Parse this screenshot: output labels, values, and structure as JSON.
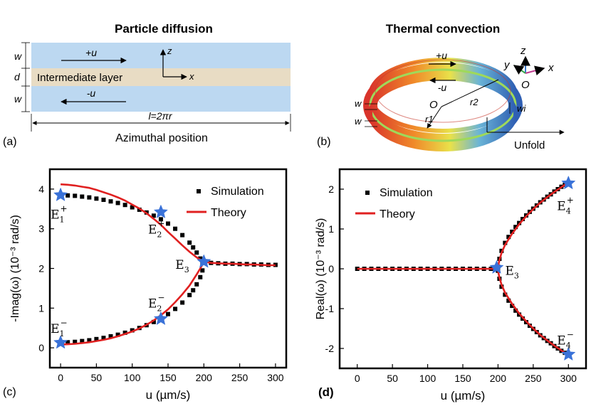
{
  "panel_a": {
    "title": "Particle diffusion",
    "label": "(a)",
    "top_flow": "+u",
    "bottom_flow": "-u",
    "middle_layer": "Intermediate layer",
    "axis_z": "z",
    "axis_x": "x",
    "dim_w_top": "w",
    "dim_d": "d",
    "dim_w_bottom": "w",
    "length": "l=2πr",
    "xlabel": "Azimuthal position"
  },
  "panel_b": {
    "title": "Thermal convection",
    "label": "(b)",
    "flow_plus": "+u",
    "flow_minus": "-u",
    "center": "O",
    "r1": "r1",
    "r2": "r2",
    "w_top": "w",
    "w_bottom": "w",
    "wi": "wi",
    "unfold": "Unfold",
    "axis_z": "z",
    "axis_y": "y",
    "axis_x": "x",
    "origin": "O",
    "colors": {
      "ring_hot": "#d9342b",
      "ring_mid": "#e9e14a",
      "ring_cold": "#2f5fb3",
      "ring_green": "#9fd95a"
    }
  },
  "chart_data": [
    {
      "panel": "(c)",
      "type": "line",
      "xlabel": "u (µm/s)",
      "ylabel": "-Imag(ω) (10⁻³ rad/s)",
      "xlim": [
        -15,
        315
      ],
      "ylim": [
        -0.5,
        4.5
      ],
      "xticks": [
        0,
        50,
        100,
        150,
        200,
        250,
        300
      ],
      "yticks": [
        0,
        1,
        2,
        3,
        4
      ],
      "legend": [
        "Simulation",
        "Theory"
      ],
      "legend_position": "top-right",
      "series": [
        {
          "name": "Simulation upper",
          "x": [
            0,
            10,
            20,
            30,
            40,
            50,
            60,
            70,
            80,
            90,
            100,
            110,
            120,
            130,
            140,
            150,
            160,
            170,
            180,
            185,
            190,
            195,
            198,
            200,
            210,
            220,
            230,
            240,
            250,
            260,
            270,
            280,
            290,
            300
          ],
          "y": [
            3.85,
            3.84,
            3.83,
            3.81,
            3.79,
            3.76,
            3.73,
            3.69,
            3.65,
            3.6,
            3.54,
            3.48,
            3.41,
            3.33,
            3.24,
            3.13,
            3.0,
            2.84,
            2.65,
            2.53,
            2.4,
            2.25,
            2.15,
            2.15,
            2.14,
            2.13,
            2.12,
            2.12,
            2.11,
            2.11,
            2.1,
            2.1,
            2.09,
            2.09
          ]
        },
        {
          "name": "Simulation lower",
          "x": [
            0,
            10,
            20,
            30,
            40,
            50,
            60,
            70,
            80,
            90,
            100,
            110,
            120,
            130,
            140,
            150,
            160,
            170,
            180,
            185,
            190,
            195,
            198
          ],
          "y": [
            0.13,
            0.14,
            0.15,
            0.17,
            0.19,
            0.22,
            0.25,
            0.29,
            0.33,
            0.38,
            0.44,
            0.5,
            0.57,
            0.65,
            0.74,
            0.85,
            0.98,
            1.14,
            1.33,
            1.45,
            1.6,
            1.78,
            1.95
          ]
        },
        {
          "name": "Theory upper",
          "x": [
            0,
            10,
            20,
            30,
            40,
            50,
            60,
            70,
            80,
            90,
            100,
            110,
            120,
            130,
            140,
            150,
            160,
            170,
            180,
            190,
            195,
            200,
            210,
            220,
            230,
            240,
            250,
            260,
            270,
            280,
            290,
            300
          ],
          "y": [
            4.12,
            4.11,
            4.09,
            4.06,
            4.03,
            3.98,
            3.92,
            3.86,
            3.79,
            3.71,
            3.61,
            3.51,
            3.39,
            3.25,
            3.1,
            2.92,
            2.75,
            2.58,
            2.42,
            2.28,
            2.22,
            2.17,
            2.14,
            2.13,
            2.12,
            2.12,
            2.11,
            2.1,
            2.1,
            2.09,
            2.08,
            2.08
          ]
        },
        {
          "name": "Theory lower",
          "x": [
            0,
            10,
            20,
            30,
            40,
            50,
            60,
            70,
            80,
            90,
            100,
            110,
            120,
            130,
            140,
            150,
            160,
            170,
            180,
            190,
            195,
            200
          ],
          "y": [
            0.08,
            0.09,
            0.1,
            0.12,
            0.14,
            0.17,
            0.2,
            0.24,
            0.29,
            0.35,
            0.41,
            0.49,
            0.58,
            0.69,
            0.82,
            0.97,
            1.15,
            1.35,
            1.57,
            1.85,
            2.0,
            2.17
          ]
        }
      ],
      "points": [
        {
          "label": "E1+",
          "sub": "1",
          "sup": "+",
          "x": 0,
          "y": 3.85
        },
        {
          "label": "E2+",
          "sub": "2",
          "sup": "+",
          "x": 140,
          "y": 3.42
        },
        {
          "label": "E3",
          "sub": "3",
          "sup": "",
          "x": 200,
          "y": 2.17
        },
        {
          "label": "E2−",
          "sub": "2",
          "sup": "−",
          "x": 140,
          "y": 0.73
        },
        {
          "label": "E1−",
          "sub": "1",
          "sup": "−",
          "x": 0,
          "y": 0.13
        }
      ]
    },
    {
      "panel": "(d)",
      "type": "line",
      "xlabel": "u (µm/s)",
      "ylabel": "Real(ω) (10⁻³ rad/s)",
      "xlim": [
        -25,
        325
      ],
      "ylim": [
        -2.5,
        2.5
      ],
      "xticks": [
        0,
        50,
        100,
        150,
        200,
        250,
        300
      ],
      "yticks": [
        -2,
        -1,
        0,
        1,
        2
      ],
      "legend": [
        "Simulation",
        "Theory"
      ],
      "legend_position": "top-left",
      "series": [
        {
          "name": "Simulation upper",
          "x": [
            200,
            202,
            205,
            210,
            215,
            220,
            225,
            230,
            235,
            240,
            245,
            250,
            255,
            260,
            265,
            270,
            275,
            280,
            285,
            290,
            295,
            300
          ],
          "y": [
            0.05,
            0.25,
            0.45,
            0.65,
            0.8,
            0.93,
            1.05,
            1.15,
            1.25,
            1.34,
            1.43,
            1.51,
            1.59,
            1.67,
            1.74,
            1.81,
            1.87,
            1.94,
            2.0,
            2.06,
            2.11,
            2.16
          ]
        },
        {
          "name": "Simulation lower",
          "x": [
            200,
            202,
            205,
            210,
            215,
            220,
            225,
            230,
            235,
            240,
            245,
            250,
            255,
            260,
            265,
            270,
            275,
            280,
            285,
            290,
            295,
            300
          ],
          "y": [
            -0.05,
            -0.25,
            -0.45,
            -0.65,
            -0.8,
            -0.93,
            -1.05,
            -1.15,
            -1.25,
            -1.34,
            -1.43,
            -1.51,
            -1.59,
            -1.67,
            -1.74,
            -1.81,
            -1.87,
            -1.94,
            -2.0,
            -2.06,
            -2.11,
            -2.16
          ]
        },
        {
          "name": "Theory upper",
          "x": [
            0,
            50,
            100,
            150,
            195,
            198,
            200,
            202,
            205,
            210,
            220,
            230,
            240,
            250,
            260,
            270,
            280,
            290,
            300
          ],
          "y": [
            0,
            0,
            0,
            0,
            0,
            0,
            0.05,
            0.22,
            0.4,
            0.6,
            0.88,
            1.12,
            1.32,
            1.5,
            1.66,
            1.8,
            1.93,
            2.05,
            2.17
          ]
        },
        {
          "name": "Theory lower",
          "x": [
            200,
            202,
            205,
            210,
            220,
            230,
            240,
            250,
            260,
            270,
            280,
            290,
            300
          ],
          "y": [
            -0.05,
            -0.22,
            -0.4,
            -0.6,
            -0.88,
            -1.12,
            -1.32,
            -1.5,
            -1.66,
            -1.8,
            -1.93,
            -2.05,
            -2.17
          ]
        },
        {
          "name": "Simulation zero",
          "x": [
            0,
            10,
            20,
            30,
            40,
            50,
            60,
            70,
            80,
            90,
            100,
            110,
            120,
            130,
            140,
            150,
            160,
            170,
            180,
            190,
            200
          ],
          "y": [
            0,
            0,
            0,
            0,
            0,
            0,
            0,
            0,
            0,
            0,
            0,
            0,
            0,
            0,
            0,
            0,
            0,
            0,
            0,
            0,
            0
          ]
        }
      ],
      "points": [
        {
          "label": "E4+",
          "sub": "4",
          "sup": "+",
          "x": 300,
          "y": 2.15
        },
        {
          "label": "E3",
          "sub": "3",
          "sup": "",
          "x": 198,
          "y": 0.03
        },
        {
          "label": "E4−",
          "sub": "4",
          "sup": "−",
          "x": 300,
          "y": -2.15
        }
      ]
    }
  ]
}
